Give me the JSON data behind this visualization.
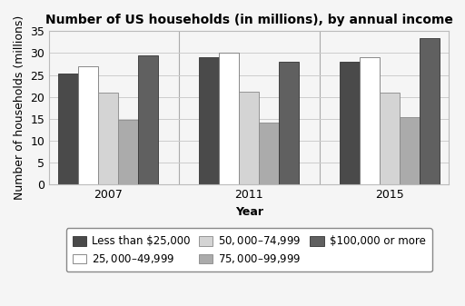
{
  "title": "Number of US households (in millions), by annual income",
  "xlabel": "Year",
  "ylabel": "Number of households (millions)",
  "years": [
    "2007",
    "2011",
    "2015"
  ],
  "categories": [
    "Less than $25,000",
    "$25,000–$49,999",
    "$50,000–$74,999",
    "$75,000–$99,999",
    "$100,000 or more"
  ],
  "values": {
    "Less than $25,000": [
      25.3,
      29.0,
      28.1
    ],
    "$25,000–$49,999": [
      27.0,
      30.0,
      29.0
    ],
    "$50,000–$74,999": [
      21.0,
      21.2,
      21.0
    ],
    "$75,000–$99,999": [
      14.8,
      14.2,
      15.3
    ],
    "$100,000 or more": [
      29.5,
      28.0,
      33.5
    ]
  },
  "colors": {
    "Less than $25,000": "#4a4a4a",
    "$25,000–$49,999": "#ffffff",
    "$50,000–$74,999": "#d4d4d4",
    "$75,000–$99,999": "#ababab",
    "$100,000 or more": "#606060"
  },
  "edgecolors": {
    "Less than $25,000": "#333333",
    "$25,000–$49,999": "#777777",
    "$50,000–$74,999": "#888888",
    "$75,000–$99,999": "#888888",
    "$100,000 or more": "#333333"
  },
  "ylim": [
    0,
    35
  ],
  "yticks": [
    0,
    5,
    10,
    15,
    20,
    25,
    30,
    35
  ],
  "bar_width": 0.17,
  "background_color": "#f5f5f5",
  "legend_ncol": 3,
  "title_fontsize": 10,
  "axis_label_fontsize": 9,
  "tick_fontsize": 9,
  "legend_fontsize": 8.5
}
